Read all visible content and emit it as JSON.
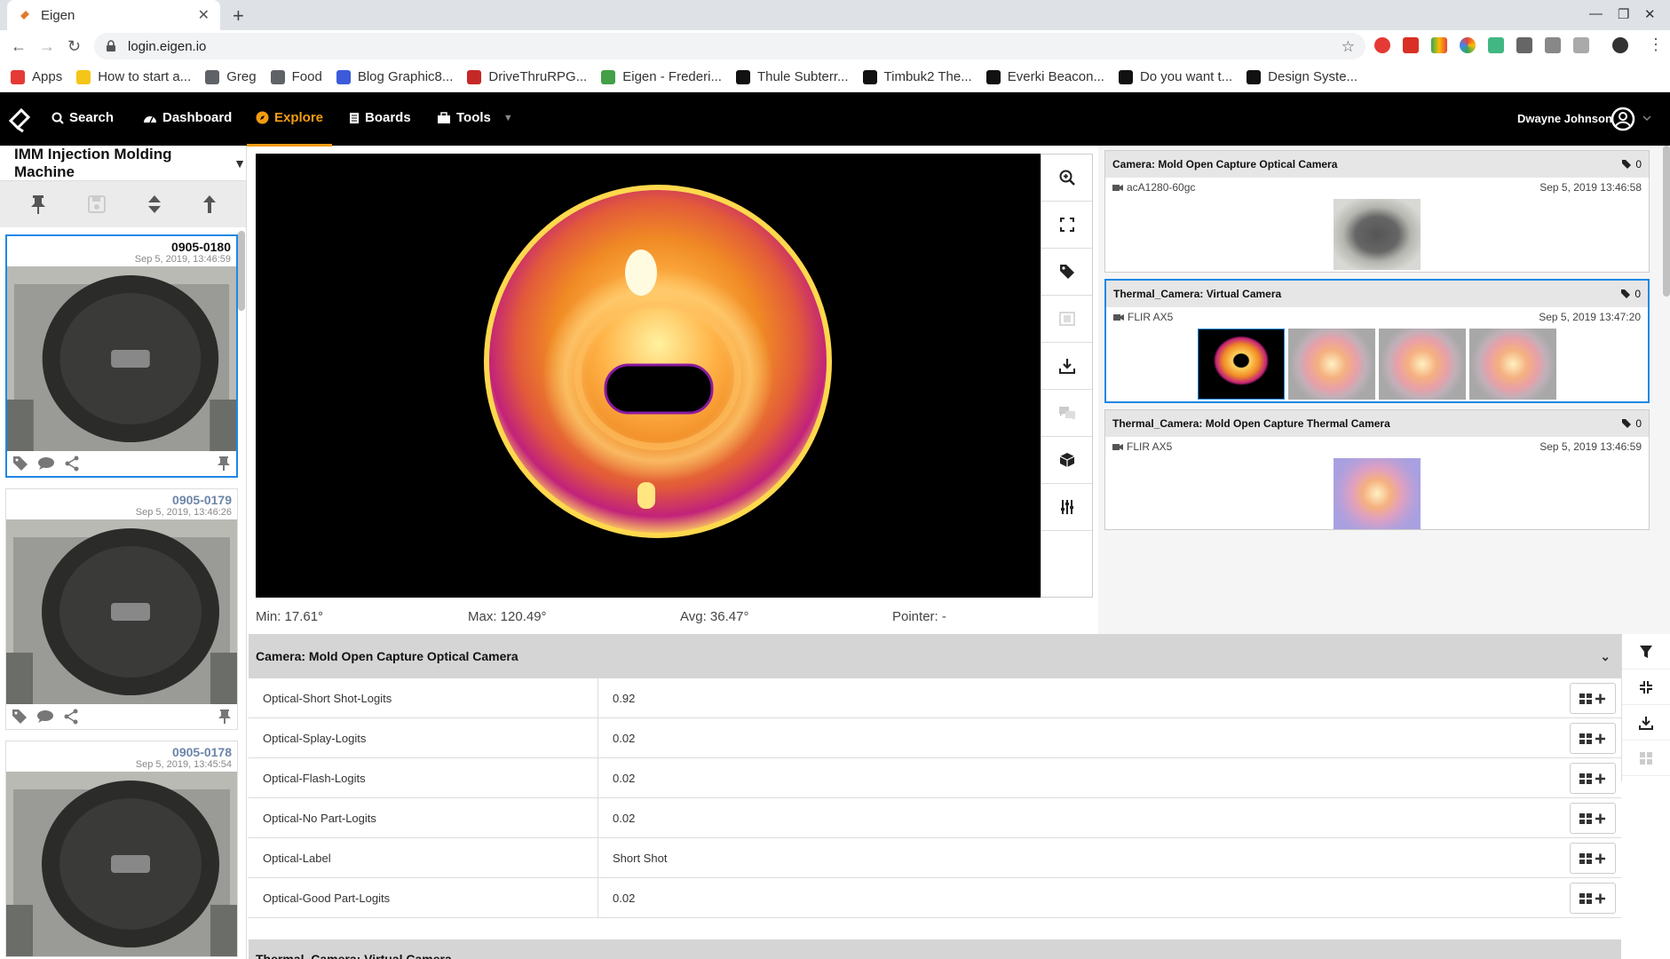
{
  "browser": {
    "tab_title": "Eigen",
    "url": "login.eigen.io",
    "bookmarks": [
      {
        "label": "Apps",
        "icon": "apps-grid-icon",
        "color": "#e53935"
      },
      {
        "label": "How to start a...",
        "icon": "emoji-icon",
        "color": "#f5c518"
      },
      {
        "label": "Greg",
        "icon": "folder-icon",
        "color": "#5f6368"
      },
      {
        "label": "Food",
        "icon": "folder-icon",
        "color": "#5f6368"
      },
      {
        "label": "Blog Graphic8...",
        "icon": "canva-icon",
        "color": "#3b5bdb"
      },
      {
        "label": "DriveThruRPG...",
        "icon": "dice-icon",
        "color": "#c62828"
      },
      {
        "label": "Eigen - Frederi...",
        "icon": "eigen-icon",
        "color": "#43a047"
      },
      {
        "label": "Thule Subterr...",
        "icon": "amazon-icon",
        "color": "#111111"
      },
      {
        "label": "Timbuk2 The...",
        "icon": "amazon-icon",
        "color": "#111111"
      },
      {
        "label": "Everki Beacon...",
        "icon": "amazon-icon",
        "color": "#111111"
      },
      {
        "label": "Do you want t...",
        "icon": "dev-icon",
        "color": "#111111"
      },
      {
        "label": "Design Syste...",
        "icon": "dev-icon",
        "color": "#111111"
      }
    ]
  },
  "nav": {
    "search": "Search",
    "dashboard": "Dashboard",
    "explore": "Explore",
    "boards": "Boards",
    "tools": "Tools",
    "user": "Dwayne Johnson",
    "accent": "#f39c12"
  },
  "left": {
    "title": "IMM Injection Molding Machine",
    "cards": [
      {
        "id": "0905-0180",
        "date": "Sep 5, 2019, 13:46:59"
      },
      {
        "id": "0905-0179",
        "date": "Sep 5, 2019, 13:46:26"
      },
      {
        "id": "0905-0178",
        "date": "Sep 5, 2019, 13:45:54"
      }
    ]
  },
  "stats": {
    "min": "Min: 17.61°",
    "max": "Max: 120.49°",
    "avg": "Avg: 36.47°",
    "pointer": "Pointer: -"
  },
  "cameras": [
    {
      "title": "Camera: Mold Open Capture Optical Camera",
      "tags": "0",
      "device": "acA1280-60gc",
      "time": "Sep 5, 2019 13:46:58"
    },
    {
      "title": "Thermal_Camera: Virtual Camera",
      "tags": "0",
      "device": "FLIR AX5",
      "time": "Sep 5, 2019 13:47:20"
    },
    {
      "title": "Thermal_Camera: Mold Open Capture Thermal Camera",
      "tags": "0",
      "device": "FLIR AX5",
      "time": "Sep 5, 2019 13:46:59"
    }
  ],
  "table": {
    "section_title": "Camera: Mold Open Capture Optical Camera",
    "rows": [
      {
        "key": "Optical-Short Shot-Logits",
        "value": "0.92"
      },
      {
        "key": "Optical-Splay-Logits",
        "value": "0.02"
      },
      {
        "key": "Optical-Flash-Logits",
        "value": "0.02"
      },
      {
        "key": "Optical-No Part-Logits",
        "value": "0.02"
      },
      {
        "key": "Optical-Label",
        "value": "Short Shot"
      },
      {
        "key": "Optical-Good Part-Logits",
        "value": "0.02"
      }
    ],
    "next_section_title": "Thermal_Camera: Virtual Camera"
  }
}
